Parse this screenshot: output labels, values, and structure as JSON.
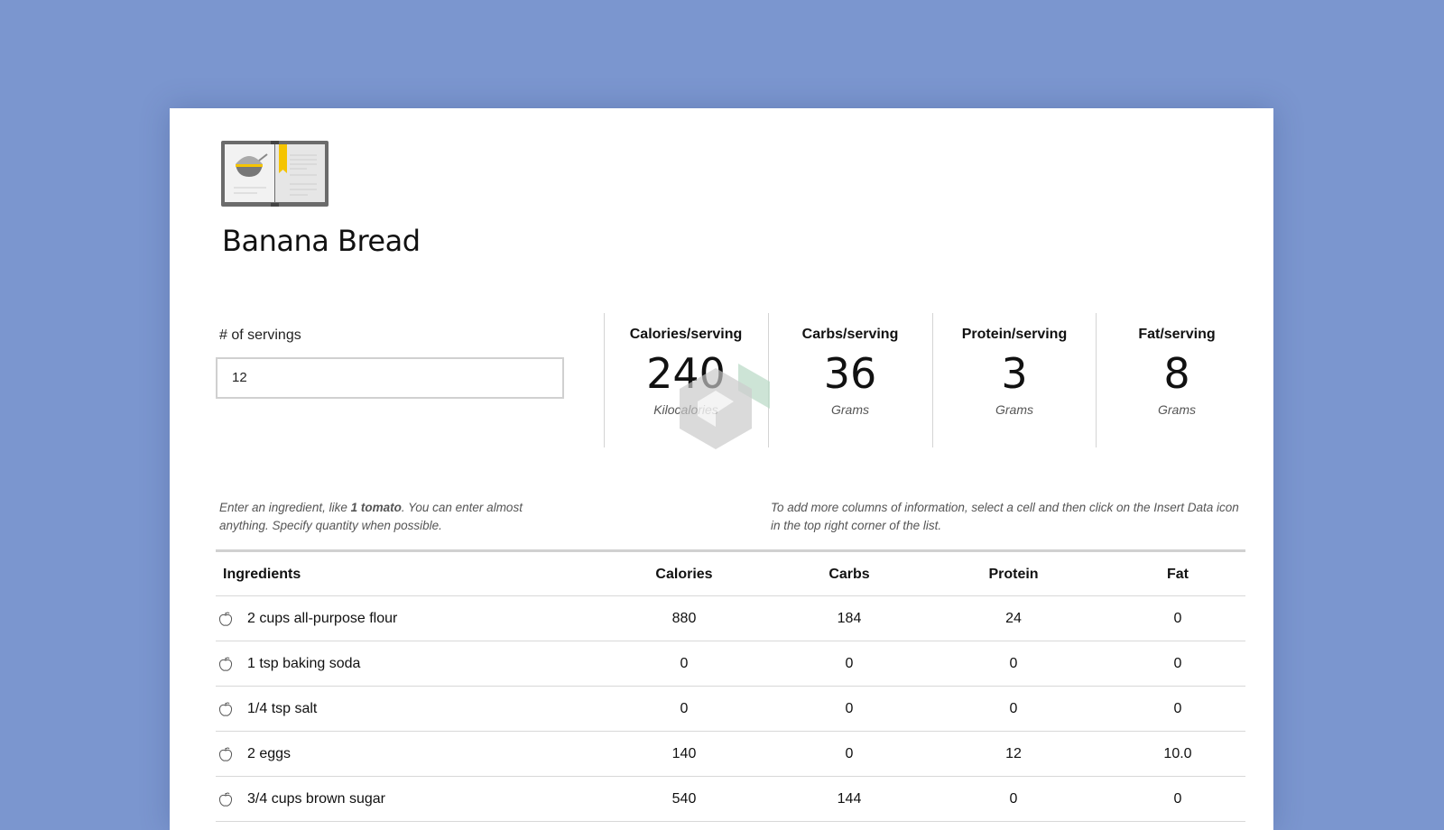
{
  "recipe": {
    "title": "Banana Bread",
    "logo_icon": "cookbook-icon"
  },
  "servings": {
    "label": "# of servings",
    "value": "12"
  },
  "stats": [
    {
      "label": "Calories/serving",
      "value": "240",
      "unit": "Kilocalories"
    },
    {
      "label": "Carbs/serving",
      "value": "36",
      "unit": "Grams"
    },
    {
      "label": "Protein/serving",
      "value": "3",
      "unit": "Grams"
    },
    {
      "label": "Fat/serving",
      "value": "8",
      "unit": "Grams"
    }
  ],
  "hints": {
    "left_pre": "Enter an ingredient, like ",
    "left_bold": "1 tomato",
    "left_post": ". You can enter almost anything. Specify quantity when possible.",
    "right": "To add more columns of information, select a cell and then click on the Insert Data icon in the top right corner of the list."
  },
  "table": {
    "headers": [
      "Ingredients",
      "Calories",
      "Carbs",
      "Protein",
      "Fat"
    ],
    "rows": [
      [
        "2 cups all-purpose flour",
        "880",
        "184",
        "24",
        "0"
      ],
      [
        "1 tsp baking soda",
        "0",
        "0",
        "0",
        "0"
      ],
      [
        "1/4 tsp salt",
        "0",
        "0",
        "0",
        "0"
      ],
      [
        "2 eggs",
        "140",
        "0",
        "12",
        "10.0"
      ],
      [
        "3/4 cups brown sugar",
        "540",
        "144",
        "0",
        "0"
      ]
    ]
  },
  "colors": {
    "background": "#7b96cf",
    "bookmark": "#f5c400"
  }
}
